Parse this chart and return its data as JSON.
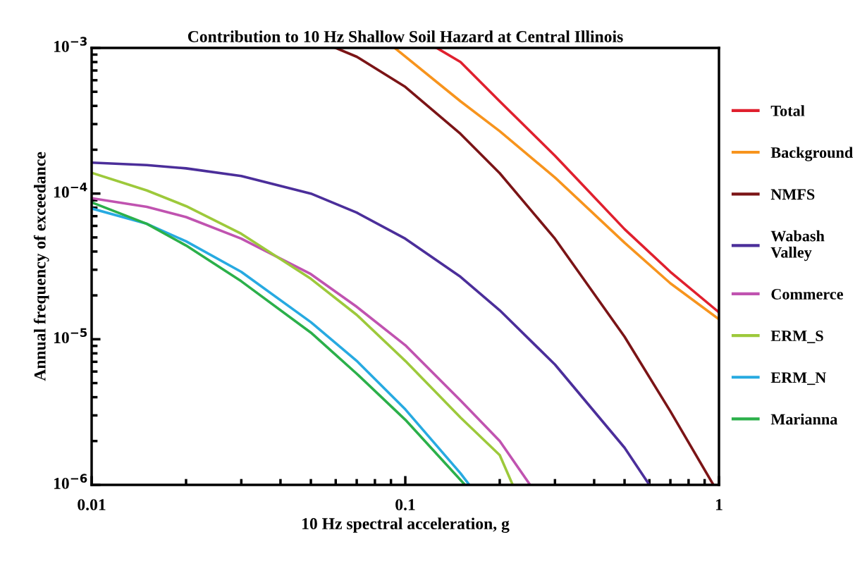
{
  "chart_data": {
    "type": "line",
    "title": "Contribution to 10 Hz Shallow Soil Hazard at Central Illinois",
    "xlabel": "10 Hz spectral acceleration, g",
    "ylabel": "Annual frequency of exceedance",
    "log": "xy",
    "xlim": [
      0.01,
      1
    ],
    "ylim": [
      1e-06,
      0.001
    ],
    "xticks": [
      0.01,
      0.1,
      1
    ],
    "yticks": [
      {
        "value": 1e-06,
        "label": "10$^{−6}$"
      },
      {
        "value": 1e-05,
        "label": "10$^{−5}$"
      },
      {
        "value": 0.0001,
        "label": "10$^{−4}$"
      },
      {
        "value": 0.001,
        "label": "10$^{−3}$"
      }
    ],
    "grid": false,
    "legend": "right",
    "marker": "none",
    "line_style": "solid",
    "series": [
      {
        "name": "Total",
        "color": "#e0202e",
        "x": [
          0.126,
          0.15,
          0.2,
          0.3,
          0.5,
          0.7,
          1
        ],
        "values": [
          0.001,
          0.0008,
          0.00043,
          0.000182,
          5.7e-05,
          2.9e-05,
          1.53e-05
        ]
      },
      {
        "name": "Background",
        "color": "#f7941d",
        "x": [
          0.0925,
          0.15,
          0.2,
          0.3,
          0.5,
          0.7,
          1
        ],
        "values": [
          0.001,
          0.00043,
          0.000268,
          0.000129,
          4.6e-05,
          2.42e-05,
          1.37e-05
        ]
      },
      {
        "name": "NMFS",
        "color": "#7b1416",
        "x": [
          0.06,
          0.07,
          0.1,
          0.15,
          0.2,
          0.3,
          0.5,
          0.7,
          0.96
        ],
        "values": [
          0.001,
          0.00087,
          0.00054,
          0.000257,
          0.000138,
          4.9e-05,
          1.04e-05,
          3.2e-06,
          1e-06
        ]
      },
      {
        "name": "Wabash\nValley",
        "color": "#4b2e9a",
        "x": [
          0.01,
          0.015,
          0.02,
          0.03,
          0.05,
          0.07,
          0.1,
          0.15,
          0.2,
          0.3,
          0.5,
          0.6
        ],
        "values": [
          0.000163,
          0.000157,
          0.000149,
          0.000132,
          0.0001,
          7.4e-05,
          4.9e-05,
          2.68e-05,
          1.58e-05,
          6.7e-06,
          1.8e-06,
          1e-06
        ]
      },
      {
        "name": "Commerce",
        "color": "#c053b0",
        "x": [
          0.01,
          0.015,
          0.02,
          0.03,
          0.05,
          0.07,
          0.1,
          0.15,
          0.2,
          0.25
        ],
        "values": [
          9.3e-05,
          8.1e-05,
          6.9e-05,
          4.9e-05,
          2.8e-05,
          1.67e-05,
          9.1e-06,
          3.8e-06,
          2e-06,
          1e-06
        ]
      },
      {
        "name": "ERM_S",
        "color": "#9dc93b",
        "x": [
          0.01,
          0.015,
          0.02,
          0.03,
          0.05,
          0.07,
          0.1,
          0.15,
          0.2,
          0.22
        ],
        "values": [
          0.000139,
          0.000105,
          8.2e-05,
          5.3e-05,
          2.6e-05,
          1.47e-05,
          7.1e-06,
          2.9e-06,
          1.6e-06,
          1e-06
        ]
      },
      {
        "name": "ERM_N",
        "color": "#27aae1",
        "x": [
          0.01,
          0.015,
          0.02,
          0.03,
          0.05,
          0.07,
          0.1,
          0.15,
          0.16
        ],
        "values": [
          7.9e-05,
          6.2e-05,
          4.7e-05,
          2.9e-05,
          1.31e-05,
          7.1e-06,
          3.3e-06,
          1.2e-06,
          1e-06
        ]
      },
      {
        "name": "Marianna",
        "color": "#2bb04a",
        "x": [
          0.01,
          0.015,
          0.02,
          0.03,
          0.05,
          0.07,
          0.1,
          0.155
        ],
        "values": [
          8.7e-05,
          6.2e-05,
          4.4e-05,
          2.5e-05,
          1.11e-05,
          5.8e-06,
          2.8e-06,
          1e-06
        ]
      }
    ]
  }
}
